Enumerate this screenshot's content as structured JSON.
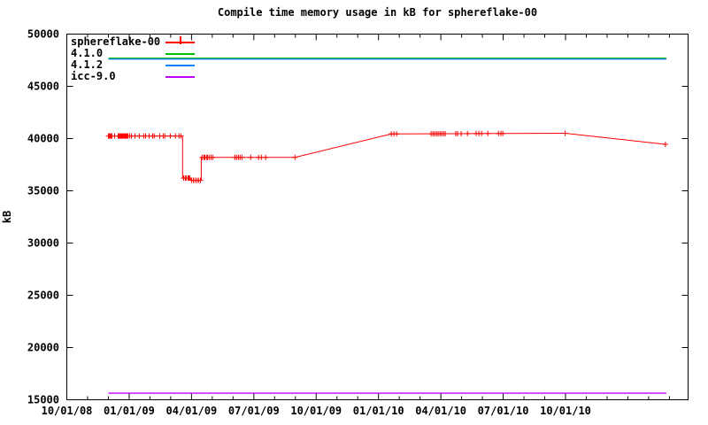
{
  "chart_data": {
    "type": "line",
    "title": "Compile time memory usage in kB for sphereflake-00",
    "ylabel": "kB",
    "background": "#ffffff",
    "border_color": "#000000",
    "grid": false,
    "x_axis": {
      "unit": "date",
      "origin_date": "10/01/08",
      "range_months": [
        0,
        29.9
      ],
      "major_ticks": [
        {
          "m": 0,
          "label": "10/01/08"
        },
        {
          "m": 3,
          "label": "01/01/09"
        },
        {
          "m": 6,
          "label": "04/01/09"
        },
        {
          "m": 9,
          "label": "07/01/09"
        },
        {
          "m": 12,
          "label": "10/01/09"
        },
        {
          "m": 15,
          "label": "01/01/10"
        },
        {
          "m": 18,
          "label": "04/01/10"
        },
        {
          "m": 21,
          "label": "07/01/10"
        },
        {
          "m": 24,
          "label": "10/01/10"
        }
      ],
      "minor_tick_months": [
        1,
        2,
        4,
        5,
        7,
        8,
        10,
        11,
        13,
        14,
        16,
        17,
        19,
        20,
        22,
        23,
        25,
        26,
        27,
        28,
        29
      ]
    },
    "y_axis": {
      "min": 15000,
      "max": 50000,
      "step": 5000,
      "tick_labels": [
        "15000",
        "20000",
        "25000",
        "30000",
        "35000",
        "40000",
        "45000",
        "50000"
      ]
    },
    "series": [
      {
        "name": "sphereflake-00",
        "color": "#ff0000",
        "style": "line+plus-markers",
        "points": [
          [
            2.0,
            40250
          ],
          [
            5.57,
            40250
          ],
          [
            5.57,
            36220
          ],
          [
            5.95,
            36220
          ],
          [
            5.95,
            36010
          ],
          [
            6.47,
            36010
          ],
          [
            6.47,
            38200
          ],
          [
            10.98,
            38200
          ],
          [
            15.62,
            40440
          ],
          [
            23.98,
            40510
          ],
          [
            28.81,
            39450
          ]
        ],
        "markers": [
          [
            2.0,
            40250
          ],
          [
            2.04,
            40250
          ],
          [
            2.09,
            40250
          ],
          [
            2.13,
            40250
          ],
          [
            2.17,
            40250
          ],
          [
            2.3,
            40250
          ],
          [
            2.47,
            40250
          ],
          [
            2.51,
            40250
          ],
          [
            2.55,
            40250
          ],
          [
            2.6,
            40250
          ],
          [
            2.64,
            40250
          ],
          [
            2.68,
            40250
          ],
          [
            2.72,
            40250
          ],
          [
            2.77,
            40250
          ],
          [
            2.81,
            40250
          ],
          [
            2.85,
            40250
          ],
          [
            2.89,
            40250
          ],
          [
            2.94,
            40250
          ],
          [
            3.02,
            40250
          ],
          [
            3.11,
            40250
          ],
          [
            3.28,
            40250
          ],
          [
            3.49,
            40250
          ],
          [
            3.7,
            40250
          ],
          [
            3.79,
            40250
          ],
          [
            3.96,
            40250
          ],
          [
            4.13,
            40250
          ],
          [
            4.21,
            40250
          ],
          [
            4.47,
            40250
          ],
          [
            4.64,
            40250
          ],
          [
            4.72,
            40250
          ],
          [
            4.98,
            40250
          ],
          [
            5.23,
            40250
          ],
          [
            5.4,
            40250
          ],
          [
            5.49,
            40250
          ],
          [
            5.62,
            36220
          ],
          [
            5.7,
            36220
          ],
          [
            5.74,
            36220
          ],
          [
            5.83,
            36220
          ],
          [
            5.87,
            36220
          ],
          [
            5.91,
            36220
          ],
          [
            6.0,
            36010
          ],
          [
            6.09,
            36010
          ],
          [
            6.17,
            36010
          ],
          [
            6.26,
            36010
          ],
          [
            6.34,
            36010
          ],
          [
            6.43,
            36010
          ],
          [
            6.51,
            38200
          ],
          [
            6.6,
            38200
          ],
          [
            6.64,
            38200
          ],
          [
            6.72,
            38200
          ],
          [
            6.77,
            38200
          ],
          [
            6.85,
            38200
          ],
          [
            6.94,
            38200
          ],
          [
            7.02,
            38200
          ],
          [
            8.09,
            38200
          ],
          [
            8.17,
            38200
          ],
          [
            8.26,
            38200
          ],
          [
            8.34,
            38200
          ],
          [
            8.43,
            38200
          ],
          [
            8.85,
            38200
          ],
          [
            9.23,
            38200
          ],
          [
            9.36,
            38200
          ],
          [
            9.57,
            38200
          ],
          [
            10.98,
            38200
          ],
          [
            15.62,
            40440
          ],
          [
            15.74,
            40445
          ],
          [
            15.87,
            40450
          ],
          [
            17.53,
            40460
          ],
          [
            17.62,
            40460
          ],
          [
            17.7,
            40460
          ],
          [
            17.79,
            40460
          ],
          [
            17.87,
            40460
          ],
          [
            17.96,
            40460
          ],
          [
            18.04,
            40465
          ],
          [
            18.13,
            40465
          ],
          [
            18.21,
            40465
          ],
          [
            18.72,
            40470
          ],
          [
            18.81,
            40470
          ],
          [
            18.98,
            40470
          ],
          [
            19.28,
            40475
          ],
          [
            19.7,
            40480
          ],
          [
            19.83,
            40480
          ],
          [
            19.96,
            40480
          ],
          [
            20.26,
            40485
          ],
          [
            20.77,
            40490
          ],
          [
            20.89,
            40490
          ],
          [
            20.98,
            40490
          ],
          [
            23.98,
            40510
          ],
          [
            28.81,
            39450
          ]
        ]
      },
      {
        "name": "4.1.0",
        "color": "#00c000",
        "style": "hline",
        "value": 47700,
        "x_range_months": [
          2.0,
          28.85
        ]
      },
      {
        "name": "4.1.2",
        "color": "#0080ff",
        "style": "hline",
        "value": 47610,
        "x_range_months": [
          2.0,
          28.85
        ]
      },
      {
        "name": "icc-9.0",
        "color": "#c000ff",
        "style": "hline",
        "value": 15630,
        "x_range_months": [
          2.0,
          28.85
        ]
      }
    ],
    "legend": {
      "position": "top-left",
      "items": [
        {
          "label": "sphereflake-00",
          "color": "#ff0000",
          "marker": "plus"
        },
        {
          "label": "4.1.0",
          "color": "#00c000",
          "marker": "none"
        },
        {
          "label": "4.1.2",
          "color": "#0080ff",
          "marker": "none"
        },
        {
          "label": "icc-9.0",
          "color": "#c000ff",
          "marker": "none"
        }
      ]
    }
  }
}
